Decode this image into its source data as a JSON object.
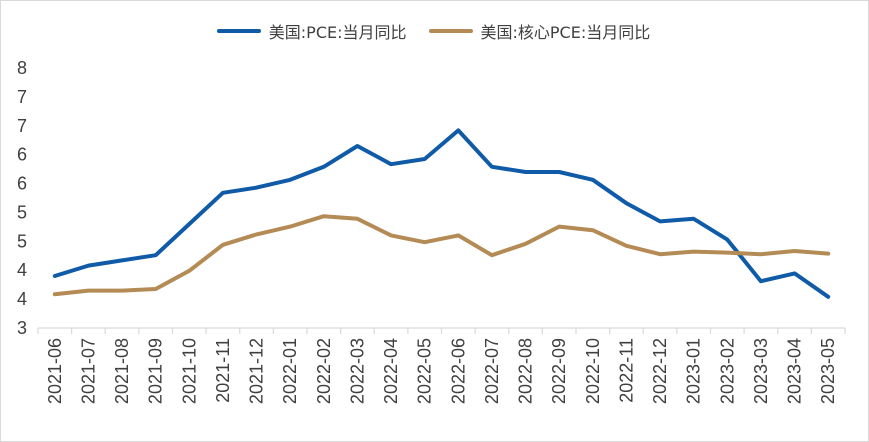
{
  "chart_data": {
    "type": "line",
    "title": "",
    "xlabel": "",
    "ylabel": "",
    "categories": [
      "2021-06",
      "2021-07",
      "2021-08",
      "2021-09",
      "2021-10",
      "2021-11",
      "2021-12",
      "2022-01",
      "2022-02",
      "2022-03",
      "2022-04",
      "2022-05",
      "2022-06",
      "2022-07",
      "2022-08",
      "2022-09",
      "2022-10",
      "2022-11",
      "2022-12",
      "2023-01",
      "2023-02",
      "2023-03",
      "2023-04",
      "2023-05"
    ],
    "y_tick_labels": [
      "3",
      "4",
      "4",
      "5",
      "5",
      "6",
      "6",
      "7",
      "7",
      "8"
    ],
    "ylim": [
      3,
      8
    ],
    "grid": false,
    "legend_position": "top-center",
    "series": [
      {
        "name": "美国:PCE:当月同比",
        "color": "#0f5ba8",
        "values": [
          4.0,
          4.2,
          4.3,
          4.4,
          5.0,
          5.6,
          5.7,
          5.85,
          6.1,
          6.5,
          6.15,
          6.25,
          6.8,
          6.1,
          6.0,
          6.0,
          5.85,
          5.4,
          5.05,
          5.1,
          4.7,
          3.9,
          4.05,
          3.6
        ]
      },
      {
        "name": "美国:核心PCE:当月同比",
        "color": "#b48a55",
        "values": [
          3.65,
          3.72,
          3.72,
          3.75,
          4.1,
          4.6,
          4.8,
          4.95,
          5.15,
          5.1,
          4.78,
          4.65,
          4.78,
          4.4,
          4.62,
          4.95,
          4.88,
          4.58,
          4.42,
          4.47,
          4.45,
          4.42,
          4.48,
          4.43
        ]
      }
    ]
  }
}
